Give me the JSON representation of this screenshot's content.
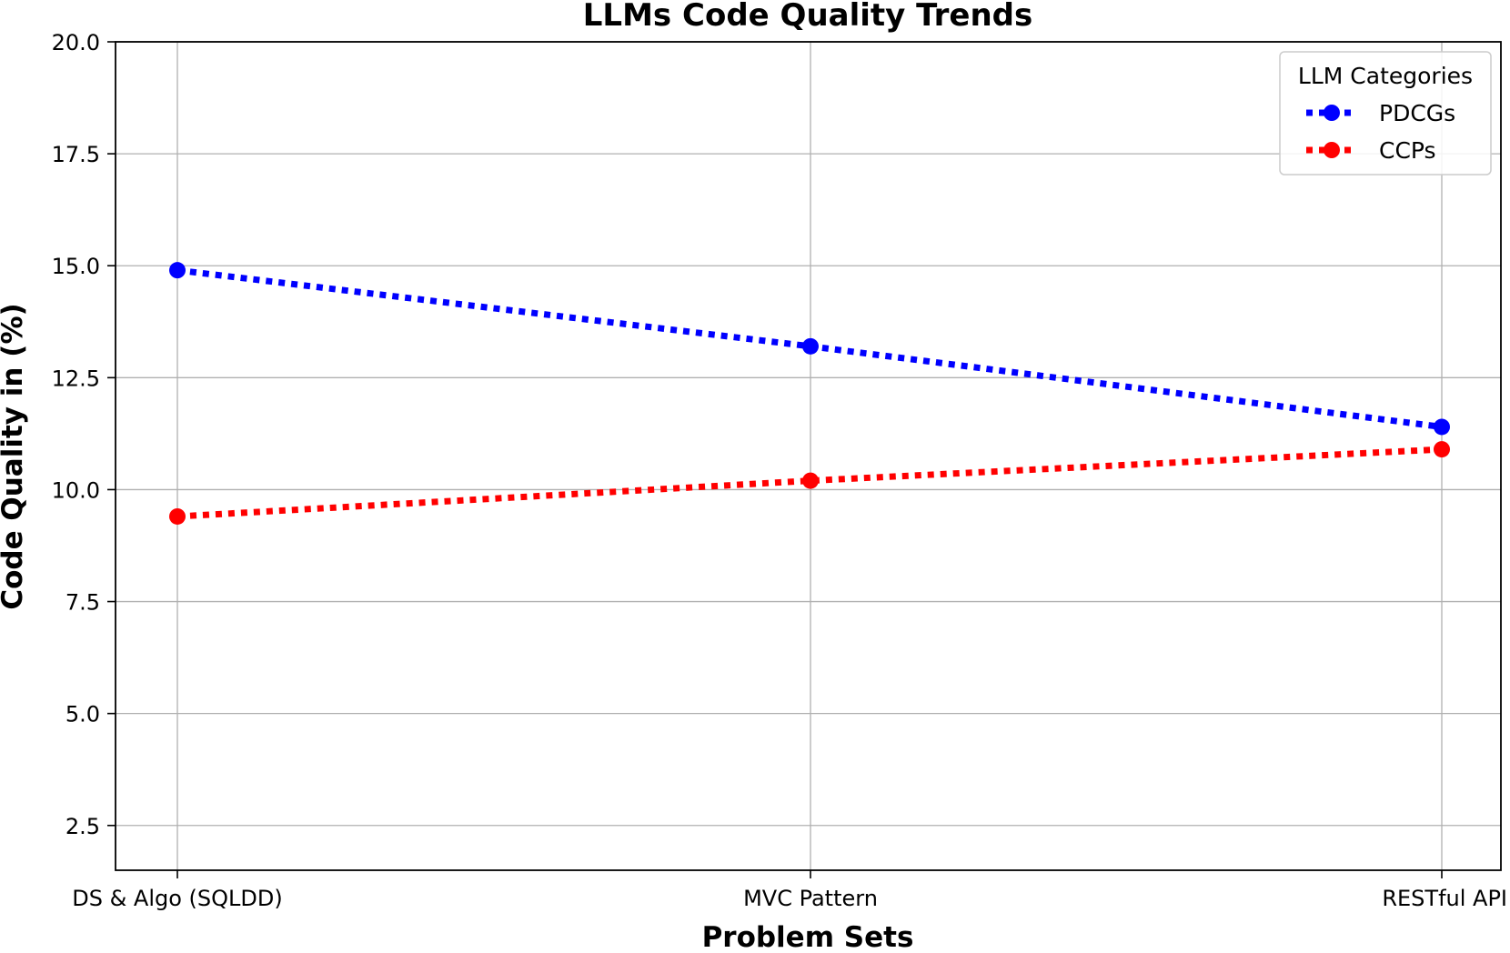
{
  "chart_data": {
    "type": "line",
    "title": "LLMs Code Quality Trends",
    "xlabel": "Problem Sets",
    "ylabel": "Code Quality in (%)",
    "categories": [
      "DS & Algo (SQLDD)",
      "MVC Pattern",
      "RESTful API"
    ],
    "ylim": [
      1.5,
      20.0
    ],
    "yticks": [
      "2.5",
      "5.0",
      "7.5",
      "10.0",
      "12.5",
      "15.0",
      "17.5",
      "20.0"
    ],
    "grid": true,
    "legend": {
      "title": "LLM Categories",
      "placement": "top-right"
    },
    "series": [
      {
        "name": "PDCGs",
        "color": "#0000ff",
        "values": [
          14.9,
          13.2,
          11.4
        ]
      },
      {
        "name": "CCPs",
        "color": "#ff0000",
        "values": [
          9.4,
          10.2,
          10.9
        ]
      }
    ]
  }
}
